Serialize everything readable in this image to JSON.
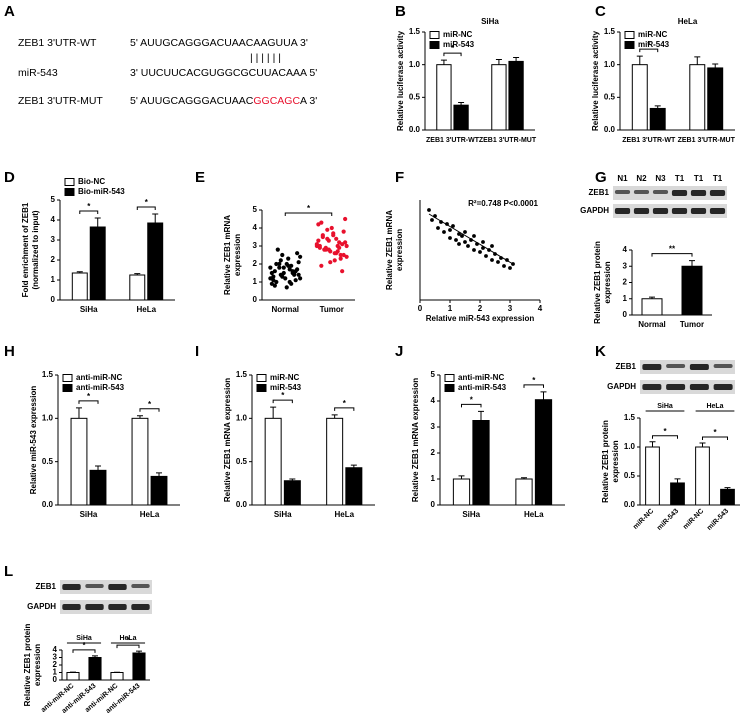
{
  "sequence_panel": {
    "label": "A",
    "rows": [
      {
        "name": "ZEB1 3'UTR-WT",
        "seq": "5' AUUGCAGGGACUAACAAGUUA 3'"
      },
      {
        "name": "miR-543",
        "seq": "3' UUCUUCACGUGGCGCUUACAAA 5'"
      },
      {
        "name": "ZEB1 3'UTR-MUT",
        "seq_parts": [
          "5' AUUGCAGGGACUAAC",
          "GGCAGC",
          "A 3'"
        ]
      }
    ],
    "pairing": "| | | | | |"
  },
  "blots": [
    {
      "panel": "G",
      "lanes": [
        "N1",
        "N2",
        "N3",
        "T1",
        "T1",
        "T1"
      ],
      "rows": [
        "ZEB1",
        "GAPDH"
      ]
    },
    {
      "panel": "K",
      "rows": [
        "ZEB1",
        "GAPDH"
      ]
    },
    {
      "panel": "L",
      "rows": [
        "ZEB1",
        "GAPDH"
      ]
    }
  ],
  "chart_data": [
    {
      "type": "bar",
      "panel_label": "B",
      "title": "SiHa",
      "categories": [
        "ZEB1 3'UTR-WT",
        "ZEB1 3'UTR-MUT"
      ],
      "series": [
        {
          "name": "miR-NC",
          "color": "#ffffff",
          "values": [
            1.0,
            1.0
          ],
          "errors": [
            0.07,
            0.08
          ]
        },
        {
          "name": "miR-543",
          "color": "#000000",
          "values": [
            0.38,
            1.05
          ],
          "errors": [
            0.04,
            0.06
          ]
        }
      ],
      "significance": [
        "*"
      ],
      "ylim": [
        0,
        1.5
      ],
      "yticks": [
        {
          "value": 0,
          "label": "0.0"
        },
        0.5,
        {
          "value": 1,
          "label": "1.0"
        },
        1.5
      ],
      "ylabel": [
        "Relative luciferase activity"
      ],
      "legend": "upper left"
    },
    {
      "type": "bar",
      "panel_label": "C",
      "title": "HeLa",
      "categories": [
        "ZEB1 3'UTR-WT",
        "ZEB1 3'UTR-MUT"
      ],
      "series": [
        {
          "name": "miR-NC",
          "color": "#ffffff",
          "values": [
            1.0,
            1.0
          ],
          "errors": [
            0.13,
            0.12
          ]
        },
        {
          "name": "miR-543",
          "color": "#000000",
          "values": [
            0.33,
            0.95
          ],
          "errors": [
            0.04,
            0.06
          ]
        }
      ],
      "significance": [
        "*"
      ],
      "ylim": [
        0,
        1.5
      ],
      "yticks": [
        {
          "value": 0,
          "label": "0.0"
        },
        0.5,
        {
          "value": 1,
          "label": "1.0"
        },
        1.5
      ],
      "ylabel": [
        "Relative luciferase activity"
      ],
      "legend": "upper left"
    },
    {
      "type": "bar",
      "panel_label": "D",
      "categories": [
        "SiHa",
        "HeLa"
      ],
      "series": [
        {
          "name": "Bio-NC",
          "color": "#ffffff",
          "values": [
            1.35,
            1.25
          ],
          "errors": [
            0.06,
            0.07
          ]
        },
        {
          "name": "Bio-miR-543",
          "color": "#000000",
          "values": [
            3.65,
            3.85
          ],
          "errors": [
            0.45,
            0.45
          ]
        }
      ],
      "significance": [
        "*",
        "*"
      ],
      "ylim": [
        0,
        5
      ],
      "yticks": [
        0,
        1,
        2,
        3,
        4,
        5
      ],
      "ylabel": [
        "Fold enrichment of ZEB1",
        "(normalized to input)"
      ],
      "legend": "above left"
    },
    {
      "type": "dot",
      "panel_label": "E",
      "categories": [
        "Normal",
        "Tumor"
      ],
      "groups": [
        {
          "color": "#000000",
          "values": [
            1.2,
            1.5,
            2.0,
            1.8,
            0.9,
            1.6,
            2.3,
            1.4,
            1.1,
            2.6,
            1.7,
            1.3,
            0.8,
            2.1,
            1.9,
            1.5,
            1.0,
            2.4,
            1.6,
            1.2,
            2.8,
            1.8,
            1.4,
            0.7,
            2.0,
            1.5,
            1.1,
            1.9,
            2.2,
            1.3,
            1.7,
            1.0,
            2.5,
            1.6,
            1.4,
            0.9,
            1.8,
            2.0,
            1.2,
            1.5
          ]
        },
        {
          "color": "#e8112d",
          "values": [
            3.0,
            2.5,
            3.6,
            2.8,
            4.2,
            3.1,
            2.2,
            3.4,
            2.9,
            3.8,
            2.6,
            3.3,
            1.9,
            4.5,
            3.0,
            2.7,
            3.5,
            2.4,
            3.2,
            4.0,
            2.8,
            3.1,
            2.3,
            3.7,
            2.9,
            3.3,
            1.6,
            2.6,
            3.9,
            3.0,
            2.5,
            3.4,
            2.8,
            4.3,
            3.2,
            2.7,
            2.1,
            3.6,
            3.0,
            2.9
          ]
        }
      ],
      "significance": "*",
      "ylim": [
        0,
        5
      ],
      "yticks": [
        0,
        1,
        2,
        3,
        4,
        5
      ],
      "ylabel": [
        "Relative ZEB1 mRNA",
        "expression"
      ]
    },
    {
      "type": "scatter",
      "panel_label": "F",
      "annotation": "R²=0.748   P<0.0001",
      "x": [
        0.3,
        0.4,
        0.5,
        0.6,
        0.7,
        0.8,
        0.9,
        1.0,
        1.0,
        1.1,
        1.2,
        1.3,
        1.3,
        1.4,
        1.5,
        1.5,
        1.6,
        1.7,
        1.8,
        1.8,
        1.9,
        2.0,
        2.1,
        2.1,
        2.2,
        2.3,
        2.4,
        2.4,
        2.5,
        2.6,
        2.7,
        2.8,
        2.9,
        3.0,
        3.1
      ],
      "y": [
        4.5,
        4.0,
        4.2,
        3.6,
        3.9,
        3.4,
        3.8,
        3.1,
        3.5,
        3.7,
        3.0,
        3.3,
        2.8,
        3.2,
        2.9,
        3.4,
        2.7,
        3.0,
        2.5,
        3.2,
        2.8,
        2.4,
        2.9,
        2.6,
        2.2,
        2.5,
        2.0,
        2.7,
        2.3,
        1.9,
        2.1,
        1.7,
        2.0,
        1.6,
        1.8
      ],
      "fit": {
        "x": [
          0.3,
          3.1
        ],
        "y": [
          4.3,
          1.8
        ]
      },
      "color": "#000000",
      "xlim": [
        0,
        4
      ],
      "xticks": [
        0,
        1,
        2,
        3,
        4
      ],
      "ylim": [
        0,
        5
      ],
      "xlabel": "Relative miR-543 expression",
      "ylabel": [
        "Relative ZEB1 mRNA",
        "expression"
      ]
    },
    {
      "type": "bar",
      "panel_label": "G",
      "categories": [
        "Normal",
        "Tumor"
      ],
      "values": [
        1.0,
        3.0
      ],
      "errors": [
        0.1,
        0.35
      ],
      "colors": [
        "#ffffff",
        "#000000"
      ],
      "significance": "**",
      "ylim": [
        0,
        4
      ],
      "yticks": [
        0,
        1,
        2,
        3,
        4
      ],
      "ylabel": [
        "Relative ZEB1 protein",
        "expression"
      ]
    },
    {
      "type": "bar",
      "panel_label": "H",
      "categories": [
        "SiHa",
        "HeLa"
      ],
      "series": [
        {
          "name": "anti-miR-NC",
          "color": "#ffffff",
          "values": [
            1.0,
            1.0
          ],
          "errors": [
            0.12,
            0.03
          ]
        },
        {
          "name": "anti-miR-543",
          "color": "#000000",
          "values": [
            0.4,
            0.33
          ],
          "errors": [
            0.05,
            0.04
          ]
        }
      ],
      "significance": [
        "*",
        "*"
      ],
      "ylim": [
        0,
        1.5
      ],
      "yticks": [
        {
          "value": 0,
          "label": "0.0"
        },
        0.5,
        {
          "value": 1,
          "label": "1.0"
        },
        1.5
      ],
      "ylabel": [
        "Relative miR-543 expression"
      ],
      "legend": "upper left"
    },
    {
      "type": "bar",
      "panel_label": "I",
      "categories": [
        "SiHa",
        "HeLa"
      ],
      "series": [
        {
          "name": "miR-NC",
          "color": "#ffffff",
          "values": [
            1.0,
            1.0
          ],
          "errors": [
            0.13,
            0.04
          ]
        },
        {
          "name": "miR-543",
          "color": "#000000",
          "values": [
            0.28,
            0.43
          ],
          "errors": [
            0.02,
            0.03
          ]
        }
      ],
      "significance": [
        "*",
        "*"
      ],
      "ylim": [
        0,
        1.5
      ],
      "yticks": [
        {
          "value": 0,
          "label": "0.0"
        },
        0.5,
        {
          "value": 1,
          "label": "1.0"
        },
        1.5
      ],
      "ylabel": [
        "Relative ZEB1 mRNA expression"
      ],
      "legend": "upper left"
    },
    {
      "type": "bar",
      "panel_label": "J",
      "categories": [
        "SiHa",
        "HeLa"
      ],
      "series": [
        {
          "name": "anti-miR-NC",
          "color": "#ffffff",
          "values": [
            1.0,
            1.0
          ],
          "errors": [
            0.12,
            0.05
          ]
        },
        {
          "name": "anti-miR-543",
          "color": "#000000",
          "values": [
            3.25,
            4.05
          ],
          "errors": [
            0.35,
            0.3
          ]
        }
      ],
      "significance": [
        "*",
        "*"
      ],
      "ylim": [
        0,
        5
      ],
      "yticks": [
        0,
        1,
        2,
        3,
        4,
        5
      ],
      "ylabel": [
        "Relative ZEB1 mRNA expression"
      ],
      "legend": "upper left"
    },
    {
      "type": "bar",
      "panel_label": "K",
      "categories": [
        "miR-NC",
        "miR-543",
        "miR-NC",
        "miR-543"
      ],
      "values": [
        1.0,
        0.38,
        1.0,
        0.27
      ],
      "errors": [
        0.09,
        0.07,
        0.07,
        0.03
      ],
      "colors": [
        "#ffffff",
        "#000000",
        "#ffffff",
        "#000000"
      ],
      "groups": [
        "SiHa",
        "HeLa"
      ],
      "significance": [
        "*",
        "*"
      ],
      "ylim": [
        0,
        1.5
      ],
      "yticks": [
        {
          "value": 0,
          "label": "0.0"
        },
        0.5,
        {
          "value": 1,
          "label": "1.0"
        },
        1.5
      ],
      "ylabel": [
        "Relative ZEB1 protein",
        "expression"
      ],
      "xlabel_rotation": 45
    },
    {
      "type": "bar",
      "panel_label": "L",
      "categories": [
        "anti-miR-NC",
        "anti-miR-543",
        "anti-miR-NC",
        "anti-miR-543"
      ],
      "values": [
        1.0,
        3.0,
        1.0,
        3.6
      ],
      "errors": [
        0.05,
        0.22,
        0.04,
        0.25
      ],
      "colors": [
        "#ffffff",
        "#000000",
        "#ffffff",
        "#000000"
      ],
      "groups": [
        "SiHa",
        "HeLa"
      ],
      "significance": [
        "*",
        "*"
      ],
      "ylim": [
        0,
        4
      ],
      "yticks": [
        0,
        1,
        2,
        3,
        4
      ],
      "ylabel": [
        "Relative ZEB1 protein",
        "expression"
      ],
      "xlabel_rotation": 40
    }
  ]
}
